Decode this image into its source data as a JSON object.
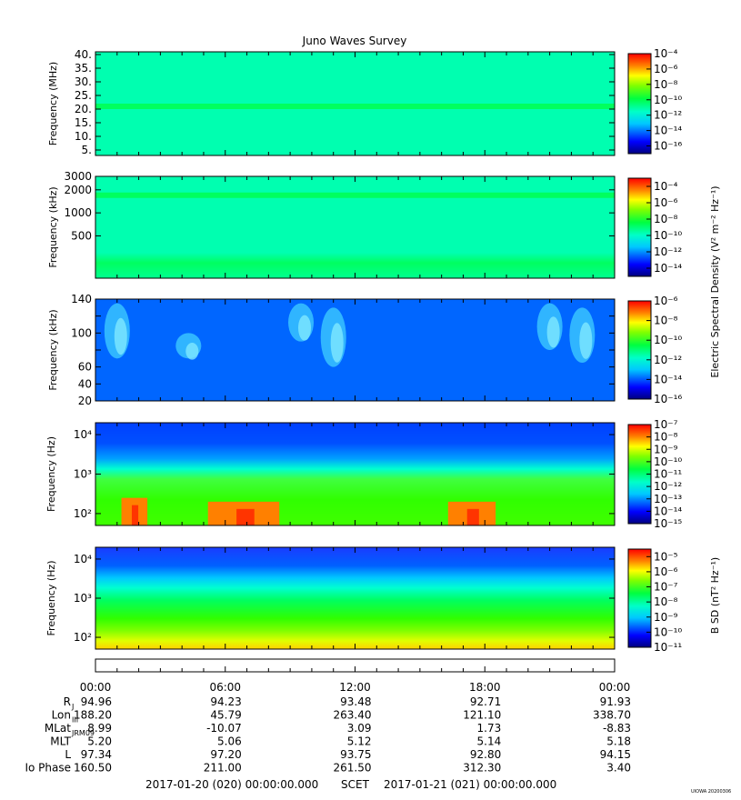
{
  "title": "Juno Waves Survey",
  "footer": {
    "start": "2017-01-20 (020) 00:00:00.000",
    "scet": "SCET",
    "end": "2017-01-21 (021) 00:00:00.000",
    "credit": "UIOWA 20200306"
  },
  "colorbar_labels": {
    "electric": "Electric Spectral Density (V² m⁻² Hz⁻¹)",
    "magnetic": "B SD (nT² Hz⁻¹)"
  },
  "chart_data": [
    {
      "type": "heatmap",
      "name": "HFR high",
      "ylabel": "Frequency (MHz)",
      "yscale": "linear",
      "ylim": [
        3,
        41
      ],
      "yticks": [
        5,
        10,
        15,
        20,
        25,
        30,
        35,
        40
      ],
      "ytick_labels": [
        "5.",
        "10.",
        "15.",
        "20.",
        "25.",
        "30.",
        "35.",
        "40."
      ],
      "xlabels": [
        "00:00",
        "06:00",
        "12:00",
        "18:00",
        "00:00"
      ],
      "colorbar": {
        "min_exp": -17,
        "max_exp": -4,
        "label_exps": [
          -4,
          -6,
          -8,
          -10,
          -12,
          -14,
          -16
        ]
      },
      "features": [
        {
          "type": "band",
          "y": 21,
          "level": -11.5
        }
      ],
      "background_level": -13
    },
    {
      "type": "heatmap",
      "name": "HFR low",
      "ylabel": "Frequency (kHz)",
      "yscale": "log",
      "ylim": [
        140,
        3000
      ],
      "yticks": [
        500,
        1000,
        2000,
        3000
      ],
      "ytick_labels": [
        "500",
        "1000",
        "2000",
        "3000"
      ],
      "colorbar": {
        "min_exp": -15,
        "max_exp": -3,
        "label_exps": [
          -4,
          -6,
          -8,
          -10,
          -12,
          -14
        ]
      },
      "features": [
        {
          "type": "band",
          "y": 1700,
          "level": -11.5
        }
      ],
      "background_level": -12.5
    },
    {
      "type": "heatmap",
      "name": "LFR high",
      "ylabel": "Frequency (kHz)",
      "yscale": "linear",
      "ylim": [
        20,
        140
      ],
      "yticks": [
        20,
        40,
        60,
        80,
        100,
        120,
        140
      ],
      "ytick_labels": [
        "20",
        "40",
        "60",
        "",
        "100",
        "",
        "140"
      ],
      "colorbar": {
        "min_exp": -16,
        "max_exp": -6,
        "label_exps": [
          -6,
          -8,
          -10,
          -12,
          -14,
          -16
        ]
      },
      "features": [
        {
          "type": "blob",
          "t": 1.0,
          "fmin": 70,
          "fmax": 135
        },
        {
          "type": "blob",
          "t": 4.3,
          "fmin": 70,
          "fmax": 100
        },
        {
          "type": "blob",
          "t": 9.5,
          "fmin": 90,
          "fmax": 135
        },
        {
          "type": "blob",
          "t": 11.0,
          "fmin": 60,
          "fmax": 130
        },
        {
          "type": "blob",
          "t": 21.0,
          "fmin": 80,
          "fmax": 135
        },
        {
          "type": "blob",
          "t": 22.5,
          "fmin": 65,
          "fmax": 130
        }
      ],
      "background_level": -14
    },
    {
      "type": "heatmap",
      "name": "LFR low",
      "ylabel": "Frequency (Hz)",
      "yscale": "log",
      "ylim": [
        50,
        20000
      ],
      "yticks": [
        100,
        1000,
        10000
      ],
      "ytick_labels": [
        "10²",
        "10³",
        "10⁴"
      ],
      "colorbar": {
        "min_exp": -15,
        "max_exp": -7,
        "label_exps": [
          -7,
          -8,
          -9,
          -10,
          -11,
          -12,
          -13,
          -14,
          -15
        ]
      },
      "features": [
        {
          "type": "burst",
          "t0": 1.2,
          "t1": 2.4,
          "fmax": 250
        },
        {
          "type": "burst",
          "t0": 5.2,
          "t1": 8.5,
          "fmax": 200
        },
        {
          "type": "burst",
          "t0": 16.3,
          "t1": 18.5,
          "fmax": 200
        }
      ],
      "background_level": -14
    },
    {
      "type": "heatmap",
      "name": "Magnetic",
      "ylabel": "Frequency (Hz)",
      "yscale": "log",
      "ylim": [
        50,
        20000
      ],
      "yticks": [
        100,
        1000,
        10000
      ],
      "ytick_labels": [
        "10²",
        "10³",
        "10⁴"
      ],
      "colorbar": {
        "min_exp": -11,
        "max_exp": -4.5,
        "label_exps": [
          -5,
          -6,
          -7,
          -8,
          -9,
          -10,
          -11
        ]
      },
      "features": [],
      "background_level": -10
    }
  ],
  "ephemeris": {
    "times": [
      "00:00",
      "06:00",
      "12:00",
      "18:00",
      "00:00"
    ],
    "rows": [
      {
        "label": "R",
        "sub": "J",
        "values": [
          "94.96",
          "94.23",
          "93.48",
          "92.71",
          "91.93"
        ]
      },
      {
        "label": "Lon",
        "sub": "III",
        "values": [
          "188.20",
          "45.79",
          "263.40",
          "121.10",
          "338.70"
        ]
      },
      {
        "label": "MLat",
        "sub": "JRM09",
        "values": [
          "8.99",
          "-10.07",
          "3.09",
          "1.73",
          "-8.83"
        ]
      },
      {
        "label": "MLT",
        "sub": "",
        "values": [
          "5.20",
          "5.06",
          "5.12",
          "5.14",
          "5.18"
        ]
      },
      {
        "label": "L",
        "sub": "",
        "values": [
          "97.34",
          "97.20",
          "93.75",
          "92.80",
          "94.15"
        ]
      },
      {
        "label": "Io Phase",
        "sub": "",
        "values": [
          "160.50",
          "211.00",
          "261.50",
          "312.30",
          "3.40"
        ]
      }
    ]
  }
}
